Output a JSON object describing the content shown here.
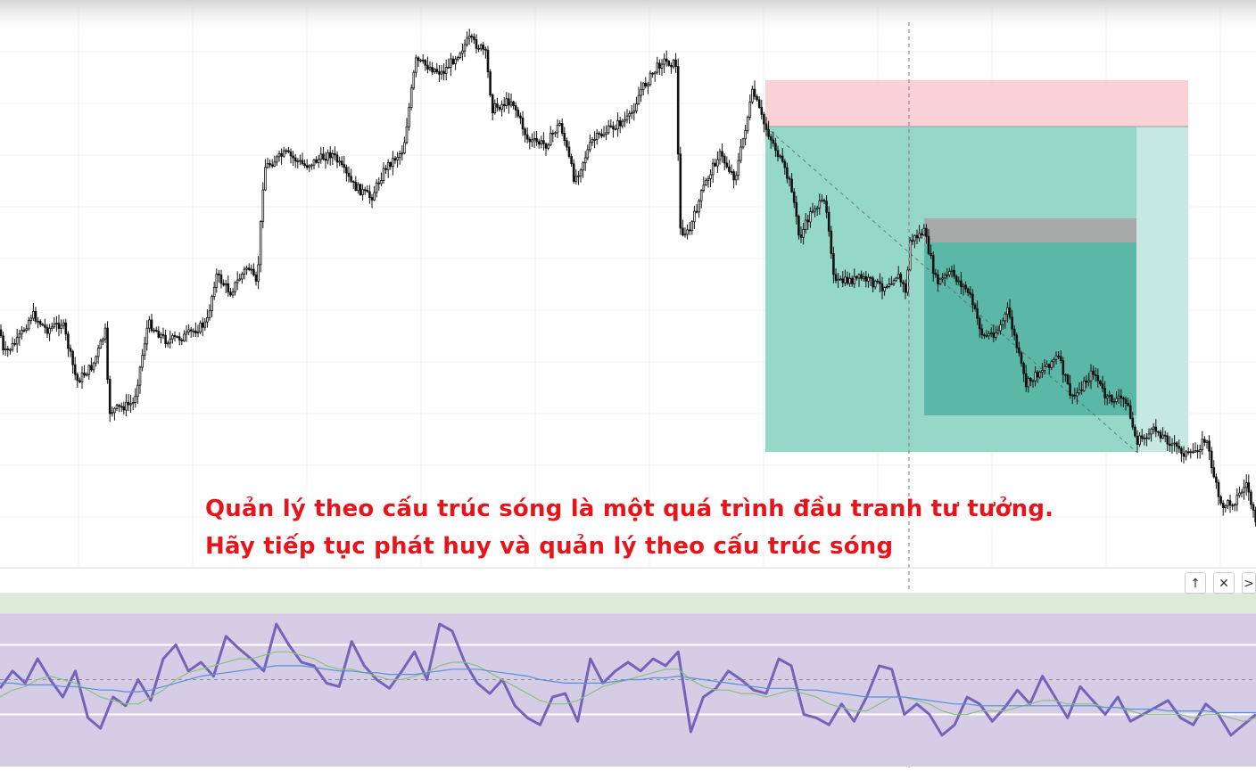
{
  "caption": {
    "line1": "Quản lý theo cấu trúc sóng là một quá trình đầu tranh tư tưởng.",
    "line2": "Hãy tiếp tục phát huy và quản lý theo cấu trúc sóng"
  },
  "pane_controls": {
    "up_icon": "↑",
    "close_icon": "✕",
    "more_icon": ">"
  },
  "colors": {
    "candle": "#111111",
    "stop_zone": "#f8c9cf",
    "target_zone": "#8fd6c4",
    "target_zone_light": "#c2e8df",
    "inner_target": "#52b3a0",
    "inner_stop": "#a6a6a6",
    "rsi_line": "#7463b8",
    "rsi_ma_fast": "#8ec07c",
    "rsi_ma_slow": "#5b8fd6",
    "rsi_band": "#d5cde6",
    "rsi_top_band": "#dcebd8",
    "caption_red": "#e8141b"
  },
  "chart_data": [
    {
      "type": "candlestick",
      "title": "",
      "price_path": [
        [
          0,
          370
        ],
        [
          4,
          398
        ],
        [
          20,
          382
        ],
        [
          36,
          352
        ],
        [
          52,
          370
        ],
        [
          70,
          362
        ],
        [
          86,
          428
        ],
        [
          104,
          410
        ],
        [
          118,
          372
        ],
        [
          122,
          462
        ],
        [
          150,
          452
        ],
        [
          166,
          362
        ],
        [
          186,
          382
        ],
        [
          206,
          378
        ],
        [
          232,
          362
        ],
        [
          242,
          308
        ],
        [
          258,
          328
        ],
        [
          278,
          298
        ],
        [
          288,
          322
        ],
        [
          296,
          188
        ],
        [
          320,
          172
        ],
        [
          342,
          186
        ],
        [
          372,
          172
        ],
        [
          396,
          208
        ],
        [
          416,
          222
        ],
        [
          432,
          188
        ],
        [
          452,
          168
        ],
        [
          466,
          68
        ],
        [
          496,
          82
        ],
        [
          526,
          44
        ],
        [
          544,
          58
        ],
        [
          552,
          122
        ],
        [
          574,
          112
        ],
        [
          592,
          158
        ],
        [
          612,
          162
        ],
        [
          628,
          138
        ],
        [
          644,
          202
        ],
        [
          664,
          158
        ],
        [
          688,
          142
        ],
        [
          706,
          132
        ],
        [
          718,
          102
        ],
        [
          742,
          68
        ],
        [
          758,
          72
        ],
        [
          762,
          258
        ],
        [
          772,
          262
        ],
        [
          788,
          212
        ],
        [
          806,
          172
        ],
        [
          824,
          200
        ],
        [
          844,
          102
        ],
        [
          856,
          138
        ],
        [
          870,
          168
        ],
        [
          888,
          212
        ],
        [
          896,
          268
        ],
        [
          912,
          232
        ],
        [
          926,
          228
        ],
        [
          936,
          318
        ],
        [
          966,
          312
        ],
        [
          990,
          322
        ],
        [
          1006,
          308
        ],
        [
          1016,
          328
        ],
        [
          1020,
          270
        ],
        [
          1036,
          260
        ],
        [
          1050,
          318
        ],
        [
          1066,
          306
        ],
        [
          1086,
          328
        ],
        [
          1102,
          378
        ],
        [
          1118,
          372
        ],
        [
          1130,
          348
        ],
        [
          1150,
          432
        ],
        [
          1170,
          412
        ],
        [
          1186,
          400
        ],
        [
          1202,
          448
        ],
        [
          1226,
          416
        ],
        [
          1240,
          448
        ],
        [
          1262,
          448
        ],
        [
          1274,
          496
        ],
        [
          1296,
          482
        ],
        [
          1318,
          502
        ],
        [
          1334,
          512
        ],
        [
          1352,
          492
        ],
        [
          1368,
          568
        ],
        [
          1384,
          562
        ],
        [
          1398,
          542
        ],
        [
          1408,
          592
        ]
      ],
      "price_range_y": [
        25,
        595
      ],
      "position_tool": {
        "direction": "short",
        "outer": {
          "stop_zone": "red",
          "target_zone": "green"
        },
        "inner": {
          "stop_zone": "grey",
          "target_zone": "green"
        }
      },
      "vertical_crosshair": true
    },
    {
      "type": "line",
      "title": "",
      "subtype": "oscillator",
      "series": [
        {
          "values": [
            45,
            55,
            48,
            62,
            50,
            40,
            55,
            28,
            22,
            40,
            35,
            50,
            38,
            62,
            70,
            55,
            60,
            52,
            75,
            68,
            62,
            55,
            82,
            70,
            60,
            58,
            48,
            46,
            72,
            58,
            50,
            45,
            55,
            66,
            50,
            82,
            78,
            60,
            48,
            42,
            50,
            35,
            28,
            24,
            40,
            42,
            26,
            62,
            48,
            55,
            60,
            55,
            62,
            58,
            66,
            20,
            40,
            45,
            55,
            50,
            44,
            42,
            62,
            58,
            30,
            28,
            24,
            36,
            26,
            40,
            58,
            56,
            30,
            36,
            30,
            18,
            24,
            40,
            36,
            26,
            34,
            44,
            36,
            52,
            40,
            28,
            46,
            38,
            30,
            40,
            26,
            30,
            34,
            38,
            28,
            24,
            36,
            30,
            18,
            24,
            30
          ]
        },
        {
          "values": [
            40,
            44,
            46,
            50,
            52,
            50,
            48,
            44,
            40,
            38,
            36,
            36,
            40,
            44,
            50,
            54,
            56,
            58,
            60,
            62,
            62,
            64,
            66,
            66,
            64,
            62,
            58,
            56,
            56,
            54,
            52,
            50,
            50,
            52,
            54,
            58,
            60,
            60,
            58,
            54,
            50,
            46,
            42,
            38,
            36,
            36,
            38,
            42,
            46,
            48,
            50,
            52,
            54,
            56,
            56,
            50,
            46,
            44,
            44,
            42,
            42,
            40,
            42,
            44,
            42,
            40,
            36,
            34,
            32,
            32,
            36,
            40,
            40,
            38,
            36,
            32,
            30,
            30,
            32,
            32,
            32,
            34,
            36,
            38,
            38,
            36,
            36,
            36,
            34,
            34,
            32,
            30,
            30,
            30,
            30,
            28,
            30,
            30,
            28,
            26,
            28
          ]
        },
        {
          "values": [
            48,
            48,
            47,
            47,
            47,
            46,
            46,
            45,
            44,
            44,
            43,
            43,
            44,
            46,
            48,
            50,
            52,
            53,
            54,
            55,
            56,
            57,
            58,
            58,
            58,
            57,
            56,
            55,
            55,
            54,
            54,
            53,
            53,
            53,
            54,
            55,
            56,
            56,
            56,
            55,
            54,
            53,
            52,
            50,
            49,
            48,
            48,
            48,
            48,
            49,
            50,
            50,
            51,
            51,
            52,
            51,
            50,
            49,
            48,
            47,
            46,
            45,
            45,
            45,
            44,
            44,
            43,
            42,
            41,
            40,
            40,
            40,
            40,
            39,
            38,
            37,
            36,
            36,
            35,
            35,
            35,
            35,
            35,
            35,
            35,
            35,
            35,
            35,
            34,
            34,
            33,
            33,
            33,
            32,
            32,
            32,
            32,
            31,
            31,
            31,
            31
          ]
        }
      ],
      "ylim": [
        0,
        100
      ],
      "reference_levels": [
        70,
        50,
        30
      ]
    }
  ]
}
